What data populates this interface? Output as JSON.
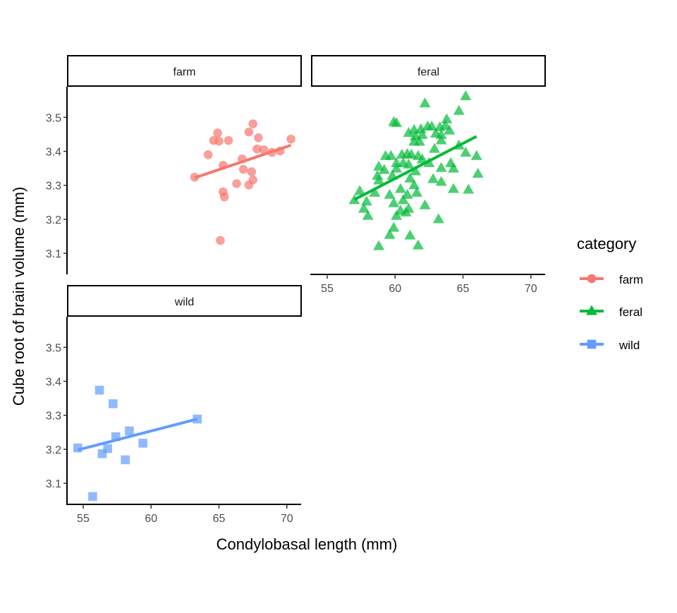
{
  "chart_data": {
    "type": "scatter",
    "xlabel": "Condylobasal length (mm)",
    "ylabel": "Cube root of brain volume (mm)",
    "xlim": [
      53.86,
      71.05
    ],
    "ylim": [
      3.04,
      3.59
    ],
    "x_ticks": [
      "55",
      "60",
      "65",
      "70"
    ],
    "y_ticks": [
      "3.1",
      "3.2",
      "3.3",
      "3.4",
      "3.5"
    ],
    "grid": false,
    "facets": [
      "farm",
      "feral",
      "wild"
    ],
    "legend": {
      "title": "category",
      "position": "right",
      "entries": [
        "farm",
        "feral",
        "wild"
      ]
    },
    "series": [
      {
        "name": "farm",
        "color": "#F8766D",
        "shape": "circle",
        "points": [
          [
            63.2,
            3.324
          ],
          [
            64.2,
            3.39
          ],
          [
            64.6,
            3.432
          ],
          [
            64.9,
            3.454
          ],
          [
            65.0,
            3.43
          ],
          [
            65.7,
            3.432
          ],
          [
            65.3,
            3.359
          ],
          [
            66.7,
            3.378
          ],
          [
            67.5,
            3.481
          ],
          [
            67.2,
            3.457
          ],
          [
            67.9,
            3.44
          ],
          [
            67.8,
            3.407
          ],
          [
            68.3,
            3.405
          ],
          [
            68.9,
            3.397
          ],
          [
            69.5,
            3.401
          ],
          [
            70.3,
            3.436
          ],
          [
            66.8,
            3.347
          ],
          [
            67.4,
            3.34
          ],
          [
            67.5,
            3.316
          ],
          [
            67.2,
            3.301
          ],
          [
            66.3,
            3.305
          ],
          [
            65.3,
            3.281
          ],
          [
            65.4,
            3.266
          ],
          [
            65.1,
            3.138
          ]
        ],
        "fit": [
          [
            63.2,
            3.322
          ],
          [
            70.3,
            3.418
          ]
        ]
      },
      {
        "name": "feral",
        "color": "#00BA38",
        "shape": "triangle",
        "points": [
          [
            65.2,
            3.562
          ],
          [
            62.2,
            3.541
          ],
          [
            64.7,
            3.519
          ],
          [
            59.9,
            3.486
          ],
          [
            60.1,
            3.483
          ],
          [
            63.8,
            3.494
          ],
          [
            61.0,
            3.454
          ],
          [
            61.4,
            3.463
          ],
          [
            61.9,
            3.465
          ],
          [
            62.4,
            3.473
          ],
          [
            62.7,
            3.473
          ],
          [
            63.3,
            3.471
          ],
          [
            63.7,
            3.475
          ],
          [
            64.0,
            3.461
          ],
          [
            63.4,
            3.448
          ],
          [
            63.0,
            3.452
          ],
          [
            62.0,
            3.448
          ],
          [
            61.5,
            3.444
          ],
          [
            61.4,
            3.428
          ],
          [
            61.8,
            3.428
          ],
          [
            63.4,
            3.432
          ],
          [
            64.7,
            3.417
          ],
          [
            62.9,
            3.407
          ],
          [
            66.0,
            3.386
          ],
          [
            65.2,
            3.396
          ],
          [
            59.3,
            3.386
          ],
          [
            59.7,
            3.386
          ],
          [
            60.5,
            3.39
          ],
          [
            60.9,
            3.392
          ],
          [
            61.2,
            3.39
          ],
          [
            61.7,
            3.386
          ],
          [
            62.0,
            3.376
          ],
          [
            62.5,
            3.365
          ],
          [
            60.6,
            3.365
          ],
          [
            61.0,
            3.361
          ],
          [
            60.1,
            3.365
          ],
          [
            58.8,
            3.355
          ],
          [
            59.2,
            3.345
          ],
          [
            60.1,
            3.349
          ],
          [
            61.5,
            3.341
          ],
          [
            63.4,
            3.351
          ],
          [
            64.1,
            3.365
          ],
          [
            64.3,
            3.349
          ],
          [
            66.1,
            3.334
          ],
          [
            58.7,
            3.328
          ],
          [
            59.8,
            3.328
          ],
          [
            61.1,
            3.32
          ],
          [
            62.8,
            3.318
          ],
          [
            63.4,
            3.31
          ],
          [
            58.8,
            3.314
          ],
          [
            57.4,
            3.283
          ],
          [
            58.5,
            3.278
          ],
          [
            59.6,
            3.272
          ],
          [
            60.4,
            3.289
          ],
          [
            60.9,
            3.272
          ],
          [
            61.6,
            3.278
          ],
          [
            61.4,
            3.3
          ],
          [
            64.3,
            3.289
          ],
          [
            65.4,
            3.287
          ],
          [
            57.0,
            3.256
          ],
          [
            57.9,
            3.252
          ],
          [
            59.9,
            3.247
          ],
          [
            60.6,
            3.256
          ],
          [
            62.2,
            3.241
          ],
          [
            57.7,
            3.231
          ],
          [
            60.4,
            3.225
          ],
          [
            61.0,
            3.231
          ],
          [
            60.1,
            3.21
          ],
          [
            60.8,
            3.22
          ],
          [
            58.0,
            3.21
          ],
          [
            63.2,
            3.2
          ],
          [
            59.9,
            3.175
          ],
          [
            59.6,
            3.154
          ],
          [
            61.1,
            3.152
          ],
          [
            58.8,
            3.121
          ],
          [
            61.7,
            3.123
          ]
        ],
        "fit": [
          [
            57.0,
            3.258
          ],
          [
            66.0,
            3.444
          ]
        ]
      },
      {
        "name": "wild",
        "color": "#619CFF",
        "shape": "square",
        "points": [
          [
            54.6,
            3.204
          ],
          [
            56.2,
            3.374
          ],
          [
            57.2,
            3.334
          ],
          [
            57.4,
            3.237
          ],
          [
            58.4,
            3.254
          ],
          [
            56.8,
            3.202
          ],
          [
            56.4,
            3.187
          ],
          [
            59.4,
            3.218
          ],
          [
            58.1,
            3.169
          ],
          [
            55.7,
            3.061
          ],
          [
            63.4,
            3.289
          ]
        ],
        "fit": [
          [
            54.6,
            3.198
          ],
          [
            63.4,
            3.289
          ]
        ]
      }
    ]
  }
}
